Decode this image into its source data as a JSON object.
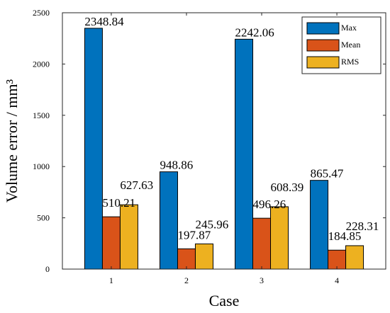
{
  "chart_data": {
    "type": "bar",
    "xlabel": "Case",
    "ylabel": "Volume error / mm³",
    "categories": [
      "1",
      "2",
      "3",
      "4"
    ],
    "yticks": [
      "0",
      "500",
      "1000",
      "1500",
      "2000",
      "2500"
    ],
    "ylim": [
      0,
      2500
    ],
    "legend_position": "top-right",
    "series": [
      {
        "name": "Max",
        "color": "#0072BD",
        "values": [
          2348.84,
          948.86,
          2242.06,
          865.47
        ],
        "labels": [
          "2348.84",
          "948.86",
          "2242.06",
          "865.47"
        ]
      },
      {
        "name": "Mean",
        "color": "#D95319",
        "values": [
          510.21,
          197.87,
          496.26,
          184.85
        ],
        "labels": [
          "510.21",
          "197.87",
          "496.26",
          "184.85"
        ]
      },
      {
        "name": "RMS",
        "color": "#EDB120",
        "values": [
          627.63,
          245.96,
          608.39,
          228.31
        ],
        "labels": [
          "627.63",
          "245.96",
          "608.39",
          "228.31"
        ]
      }
    ]
  }
}
